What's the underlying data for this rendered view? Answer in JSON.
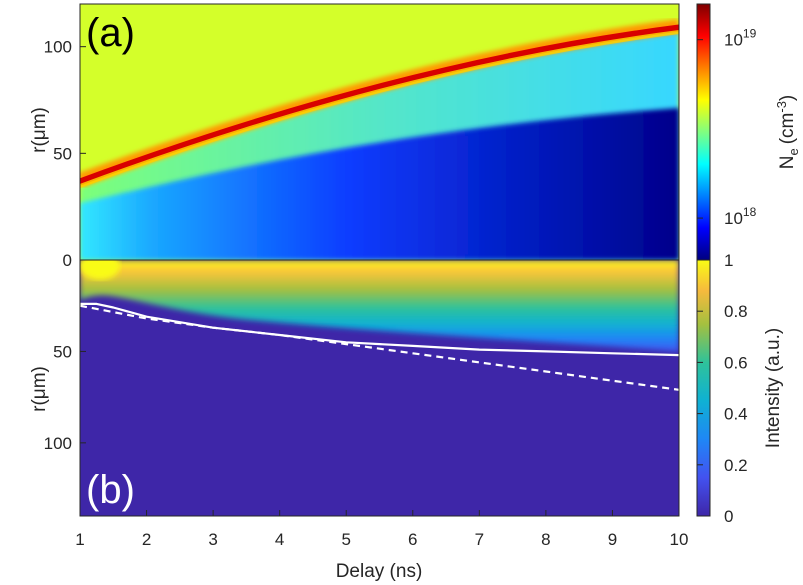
{
  "chart_data": [
    {
      "type": "heatmap",
      "panel_label": "(a)",
      "ylabel": "r(μm)",
      "ylim": [
        0,
        120
      ],
      "yticks": [
        "0",
        "50",
        "100"
      ],
      "colorbar": {
        "label": "N",
        "label_sub": "e",
        "label_unit_pre": "(cm",
        "label_unit_sup": "-3",
        "label_unit_post": ")",
        "scale": "log",
        "ticks": [
          {
            "base": "10",
            "exp": "19",
            "value": 1e+19
          },
          {
            "base": "10",
            "exp": "18",
            "value": 1e+18
          }
        ]
      },
      "description_data": {
        "front_r_start": 35,
        "front_r_end": 108
      }
    },
    {
      "type": "heatmap",
      "panel_label": "(b)",
      "ylabel": "r(μm)",
      "ylim": [
        0,
        140
      ],
      "yticks": [
        "50",
        "100"
      ],
      "colorbar": {
        "label": "Intensity (a.u.)",
        "ticks": [
          "1",
          "0.8",
          "0.6",
          "0.4",
          "0.2",
          "0"
        ]
      },
      "series": [
        {
          "style": "solid",
          "x": [
            1,
            1.25,
            1.5,
            2,
            3,
            4,
            5,
            6,
            7,
            8,
            9,
            10
          ],
          "y": [
            24,
            24,
            26,
            31,
            37,
            41,
            45,
            47,
            49,
            50,
            51,
            52
          ]
        },
        {
          "style": "dashed",
          "x": [
            1,
            2,
            3,
            4,
            5,
            6,
            7,
            8,
            9,
            10
          ],
          "y": [
            25,
            32,
            37,
            41,
            46,
            51,
            56,
            61,
            66,
            71
          ]
        }
      ]
    }
  ],
  "xaxis": {
    "label": "Delay (ns)",
    "min": 1,
    "max": 10,
    "ticks": [
      "1",
      "2",
      "3",
      "4",
      "5",
      "6",
      "7",
      "8",
      "9",
      "10"
    ]
  }
}
